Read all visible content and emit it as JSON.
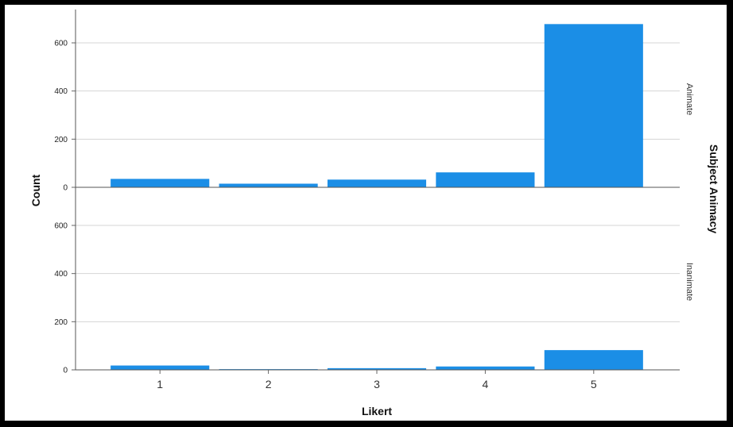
{
  "chart_data": {
    "type": "bar",
    "categories": [
      "1",
      "2",
      "3",
      "4",
      "5"
    ],
    "xlabel": "Likert",
    "ylabel": "Count",
    "facet_title": "Subject Animacy",
    "ylim": [
      0,
      700
    ],
    "yticks": [
      0,
      200,
      400,
      600
    ],
    "grid": true,
    "bar_color": "#1b8ee6",
    "panels": [
      {
        "name": "Animate",
        "values": [
          35,
          15,
          32,
          62,
          678
        ]
      },
      {
        "name": "Inanimate",
        "values": [
          18,
          3,
          7,
          14,
          82
        ]
      }
    ]
  }
}
